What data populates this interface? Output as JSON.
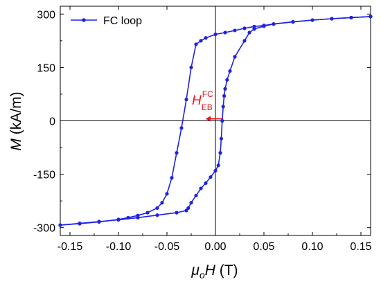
{
  "chart_data": {
    "type": "line",
    "title": "",
    "xlabel": {
      "symbol": "μ",
      "sub": "o",
      "var": "H",
      "unit": " (T)"
    },
    "ylabel": {
      "var": "M",
      "unit": " (kA/m)"
    },
    "xlim": [
      -0.16,
      0.16
    ],
    "ylim": [
      -322,
      322
    ],
    "xticks": [
      -0.15,
      -0.1,
      -0.05,
      0.0,
      0.05,
      0.1,
      0.15
    ],
    "xtick_labels": [
      "-0.15",
      "-0.10",
      "-0.05",
      "0.00",
      "0.05",
      "0.10",
      "0.15"
    ],
    "yticks": [
      -300,
      -150,
      0,
      150,
      300
    ],
    "ytick_labels": [
      "-300",
      "-150",
      "0",
      "150",
      "300"
    ],
    "zero_lines": true,
    "grid": false,
    "legend_position": "top-left",
    "series": [
      {
        "name": "FC loop",
        "color": "#1f22e0",
        "marker": "circle",
        "segments": [
          {
            "branch": "descending",
            "x": [
              0.16,
              0.14,
              0.12,
              0.1,
              0.08,
              0.06,
              0.05,
              0.04,
              0.03,
              0.02,
              0.01,
              0.0,
              -0.01,
              -0.015,
              -0.02,
              -0.025,
              -0.03,
              -0.035,
              -0.04,
              -0.045,
              -0.05,
              -0.055,
              -0.06,
              -0.07,
              -0.08,
              -0.09,
              -0.1,
              -0.12,
              -0.14,
              -0.16
            ],
            "y": [
              293,
              290,
              287,
              283,
              278,
              272,
              268,
              265,
              260,
              254,
              248,
              243,
              233,
              225,
              215,
              150,
              60,
              -20,
              -90,
              -160,
              -205,
              -230,
              -245,
              -258,
              -266,
              -272,
              -277,
              -284,
              -289,
              -293
            ]
          },
          {
            "branch": "ascending",
            "x": [
              -0.16,
              -0.14,
              -0.12,
              -0.1,
              -0.08,
              -0.06,
              -0.04,
              -0.03,
              -0.028,
              -0.025,
              -0.02,
              -0.015,
              -0.01,
              -0.005,
              0.0,
              0.003,
              0.005,
              0.006,
              0.007,
              0.008,
              0.009,
              0.01,
              0.012,
              0.015,
              0.02,
              0.03,
              0.035,
              0.04,
              0.05,
              0.06,
              0.08,
              0.1,
              0.12,
              0.14,
              0.16
            ],
            "y": [
              -293,
              -288,
              -283,
              -278,
              -272,
              -265,
              -258,
              -252,
              -245,
              -230,
              -210,
              -190,
              -175,
              -158,
              -140,
              -125,
              -90,
              -50,
              0,
              40,
              70,
              90,
              115,
              140,
              180,
              225,
              248,
              258,
              266,
              272,
              278,
              283,
              287,
              290,
              293
            ]
          }
        ]
      }
    ],
    "annotations": [
      {
        "text_main": "H",
        "text_sup": "FC",
        "text_sub": "EB",
        "color": "#e8141b",
        "arrow_from_x": 0.007,
        "arrow_to_x": -0.01,
        "arrow_y": 0
      }
    ]
  }
}
